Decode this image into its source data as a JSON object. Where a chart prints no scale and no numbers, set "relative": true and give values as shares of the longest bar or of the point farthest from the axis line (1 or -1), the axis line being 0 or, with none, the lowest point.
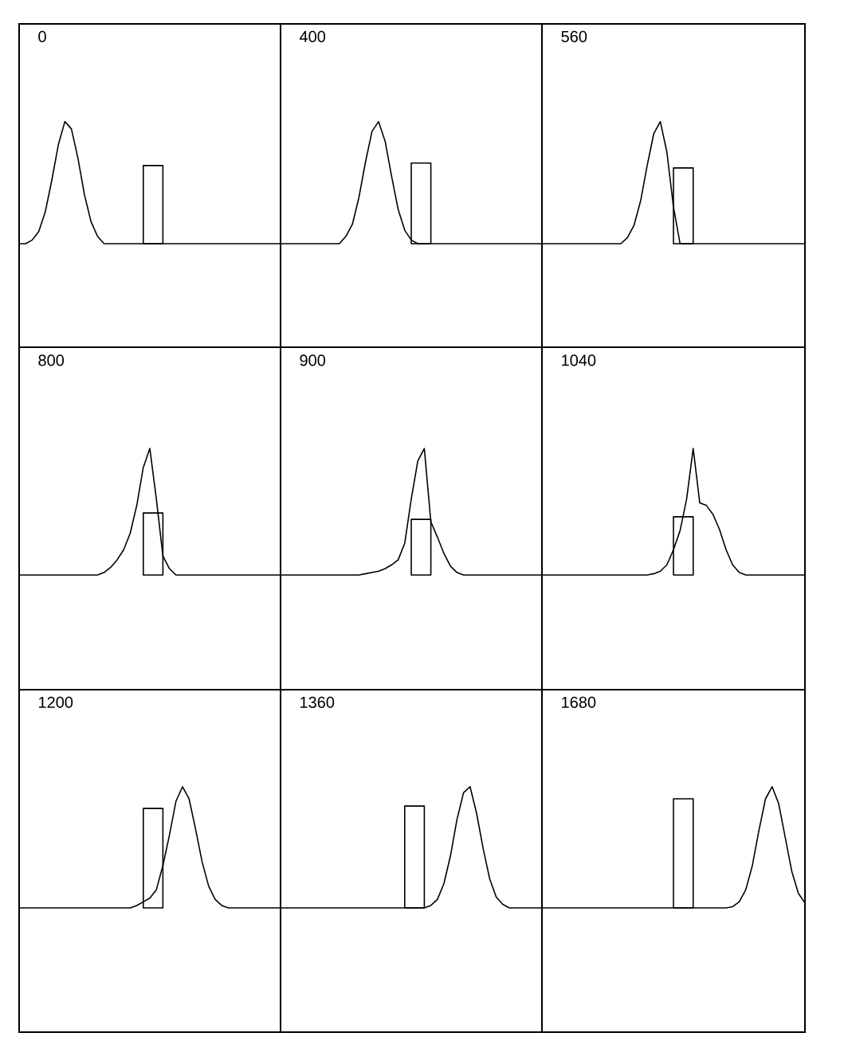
{
  "chart_data": [
    {
      "type": "line",
      "title": "0",
      "relative": true,
      "categories": [
        null,
        null,
        null,
        null,
        null,
        null,
        null,
        null,
        null,
        null,
        null,
        null,
        null,
        null,
        null,
        null,
        null,
        null,
        null,
        null,
        null,
        null,
        null,
        null,
        null,
        null,
        null,
        null,
        null,
        null,
        null,
        null,
        null,
        null,
        null,
        null,
        null,
        null,
        null,
        null,
        null
      ],
      "series": [
        {
          "type": "line",
          "color": "#000000",
          "values": [
            0,
            0,
            0.03,
            0.1,
            0.26,
            0.52,
            0.81,
            1,
            0.94,
            0.7,
            0.4,
            0.18,
            0.06,
            0,
            0,
            0,
            0,
            0,
            0,
            0,
            0,
            0,
            0,
            0,
            0,
            0,
            0,
            0,
            0,
            0,
            0,
            0,
            0,
            0,
            0,
            0,
            0,
            0,
            0,
            0,
            0
          ]
        },
        {
          "type": "area",
          "color": "#000000",
          "values": [
            null,
            null,
            null,
            null,
            null,
            null,
            null,
            null,
            null,
            null,
            null,
            null,
            null,
            null,
            null,
            null,
            null,
            null,
            null,
            0.64,
            0.64,
            0.64,
            0.64,
            null,
            null,
            null,
            null,
            null,
            null,
            null,
            null,
            null,
            null,
            null,
            null,
            null,
            null,
            null,
            null,
            null,
            null
          ]
        }
      ]
    },
    {
      "type": "line",
      "title": "400",
      "relative": true,
      "categories": [
        null,
        null,
        null,
        null,
        null,
        null,
        null,
        null,
        null,
        null,
        null,
        null,
        null,
        null,
        null,
        null,
        null,
        null,
        null,
        null,
        null,
        null,
        null,
        null,
        null,
        null,
        null,
        null,
        null,
        null,
        null,
        null,
        null,
        null,
        null,
        null,
        null,
        null,
        null,
        null,
        null
      ],
      "series": [
        {
          "type": "line",
          "color": "#000000",
          "values": [
            0,
            0,
            0,
            0,
            0,
            0,
            0,
            0,
            0,
            0,
            0.06,
            0.16,
            0.38,
            0.67,
            0.92,
            1,
            0.84,
            0.55,
            0.28,
            0.11,
            0.03,
            0,
            0,
            0,
            0,
            0,
            0,
            0,
            0,
            0,
            0,
            0,
            0,
            0,
            0,
            0,
            0,
            0,
            0,
            0,
            0
          ]
        },
        {
          "type": "area",
          "color": "#000000",
          "values": [
            null,
            null,
            null,
            null,
            null,
            null,
            null,
            null,
            null,
            null,
            null,
            null,
            null,
            null,
            null,
            null,
            null,
            null,
            null,
            null,
            0.66,
            0.66,
            0.66,
            0.66,
            null,
            null,
            null,
            null,
            null,
            null,
            null,
            null,
            null,
            null,
            null,
            null,
            null,
            null,
            null,
            null,
            null
          ]
        }
      ]
    },
    {
      "type": "line",
      "title": "560",
      "relative": true,
      "categories": [
        null,
        null,
        null,
        null,
        null,
        null,
        null,
        null,
        null,
        null,
        null,
        null,
        null,
        null,
        null,
        null,
        null,
        null,
        null,
        null,
        null,
        null,
        null,
        null,
        null,
        null,
        null,
        null,
        null,
        null,
        null,
        null,
        null,
        null,
        null,
        null,
        null,
        null,
        null,
        null,
        null
      ],
      "series": [
        {
          "type": "line",
          "color": "#000000",
          "values": [
            0,
            0,
            0,
            0,
            0,
            0,
            0,
            0,
            0,
            0,
            0,
            0,
            0,
            0.05,
            0.15,
            0.35,
            0.64,
            0.9,
            1,
            0.75,
            0.3,
            0,
            0,
            0,
            0,
            0,
            0,
            0,
            0,
            0,
            0,
            0,
            0,
            0,
            0,
            0,
            0,
            0,
            0,
            0,
            0
          ]
        },
        {
          "type": "area",
          "color": "#000000",
          "values": [
            null,
            null,
            null,
            null,
            null,
            null,
            null,
            null,
            null,
            null,
            null,
            null,
            null,
            null,
            null,
            null,
            null,
            null,
            null,
            null,
            0.62,
            0.62,
            0.62,
            0.62,
            null,
            null,
            null,
            null,
            null,
            null,
            null,
            null,
            null,
            null,
            null,
            null,
            null,
            null,
            null,
            null,
            null
          ]
        }
      ]
    },
    {
      "type": "line",
      "title": "800",
      "relative": true,
      "categories": [
        null,
        null,
        null,
        null,
        null,
        null,
        null,
        null,
        null,
        null,
        null,
        null,
        null,
        null,
        null,
        null,
        null,
        null,
        null,
        null,
        null,
        null,
        null,
        null,
        null,
        null,
        null,
        null,
        null,
        null,
        null,
        null,
        null,
        null,
        null,
        null,
        null,
        null,
        null,
        null,
        null
      ],
      "series": [
        {
          "type": "line",
          "color": "#000000",
          "values": [
            0,
            0,
            0,
            0,
            0,
            0,
            0,
            0,
            0,
            0,
            0,
            0,
            0,
            0.02,
            0.06,
            0.12,
            0.2,
            0.33,
            0.55,
            0.85,
            1,
            0.6,
            0.15,
            0.05,
            0,
            0,
            0,
            0,
            0,
            0,
            0,
            0,
            0,
            0,
            0,
            0,
            0,
            0,
            0,
            0,
            0
          ]
        },
        {
          "type": "area",
          "color": "#000000",
          "values": [
            null,
            null,
            null,
            null,
            null,
            null,
            null,
            null,
            null,
            null,
            null,
            null,
            null,
            null,
            null,
            null,
            null,
            null,
            null,
            0.49,
            0.49,
            0.49,
            0.49,
            null,
            null,
            null,
            null,
            null,
            null,
            null,
            null,
            null,
            null,
            null,
            null,
            null,
            null,
            null,
            null,
            null,
            null
          ]
        }
      ]
    },
    {
      "type": "line",
      "title": "900",
      "relative": true,
      "categories": [
        null,
        null,
        null,
        null,
        null,
        null,
        null,
        null,
        null,
        null,
        null,
        null,
        null,
        null,
        null,
        null,
        null,
        null,
        null,
        null,
        null,
        null,
        null,
        null,
        null,
        null,
        null,
        null,
        null,
        null,
        null,
        null,
        null,
        null,
        null,
        null,
        null,
        null,
        null,
        null,
        null
      ],
      "series": [
        {
          "type": "line",
          "color": "#000000",
          "values": [
            0,
            0,
            0,
            0,
            0,
            0,
            0,
            0,
            0,
            0,
            0,
            0,
            0,
            0.01,
            0.02,
            0.03,
            0.05,
            0.08,
            0.12,
            0.25,
            0.6,
            0.9,
            1,
            0.42,
            0.3,
            0.17,
            0.07,
            0.02,
            0,
            0,
            0,
            0,
            0,
            0,
            0,
            0,
            0,
            0,
            0,
            0,
            0
          ]
        },
        {
          "type": "area",
          "color": "#000000",
          "values": [
            null,
            null,
            null,
            null,
            null,
            null,
            null,
            null,
            null,
            null,
            null,
            null,
            null,
            null,
            null,
            null,
            null,
            null,
            null,
            null,
            0.44,
            0.44,
            0.44,
            0.44,
            null,
            null,
            null,
            null,
            null,
            null,
            null,
            null,
            null,
            null,
            null,
            null,
            null,
            null,
            null,
            null,
            null
          ]
        }
      ]
    },
    {
      "type": "line",
      "title": "1040",
      "relative": true,
      "categories": [
        null,
        null,
        null,
        null,
        null,
        null,
        null,
        null,
        null,
        null,
        null,
        null,
        null,
        null,
        null,
        null,
        null,
        null,
        null,
        null,
        null,
        null,
        null,
        null,
        null,
        null,
        null,
        null,
        null,
        null,
        null,
        null,
        null,
        null,
        null,
        null,
        null,
        null,
        null,
        null,
        null
      ],
      "series": [
        {
          "type": "line",
          "color": "#000000",
          "values": [
            0,
            0,
            0,
            0,
            0,
            0,
            0,
            0,
            0,
            0,
            0,
            0,
            0,
            0,
            0,
            0,
            0,
            0.01,
            0.03,
            0.08,
            0.2,
            0.35,
            0.6,
            1,
            0.57,
            0.55,
            0.48,
            0.36,
            0.2,
            0.08,
            0.02,
            0,
            0,
            0,
            0,
            0,
            0,
            0,
            0,
            0,
            0
          ]
        },
        {
          "type": "area",
          "color": "#000000",
          "values": [
            null,
            null,
            null,
            null,
            null,
            null,
            null,
            null,
            null,
            null,
            null,
            null,
            null,
            null,
            null,
            null,
            null,
            null,
            null,
            null,
            0.46,
            0.46,
            0.46,
            0.46,
            null,
            null,
            null,
            null,
            null,
            null,
            null,
            null,
            null,
            null,
            null,
            null,
            null,
            null,
            null,
            null,
            null
          ]
        }
      ]
    },
    {
      "type": "line",
      "title": "1200",
      "relative": true,
      "categories": [
        null,
        null,
        null,
        null,
        null,
        null,
        null,
        null,
        null,
        null,
        null,
        null,
        null,
        null,
        null,
        null,
        null,
        null,
        null,
        null,
        null,
        null,
        null,
        null,
        null,
        null,
        null,
        null,
        null,
        null,
        null,
        null,
        null,
        null,
        null,
        null,
        null,
        null,
        null,
        null,
        null
      ],
      "series": [
        {
          "type": "line",
          "color": "#000000",
          "values": [
            0,
            0,
            0,
            0,
            0,
            0,
            0,
            0,
            0,
            0,
            0,
            0,
            0,
            0,
            0,
            0,
            0,
            0,
            0.02,
            0.05,
            0.08,
            0.15,
            0.35,
            0.6,
            0.88,
            1,
            0.9,
            0.65,
            0.38,
            0.18,
            0.07,
            0.02,
            0,
            0,
            0,
            0,
            0,
            0,
            0,
            0,
            0
          ]
        },
        {
          "type": "area",
          "color": "#000000",
          "values": [
            null,
            null,
            null,
            null,
            null,
            null,
            null,
            null,
            null,
            null,
            null,
            null,
            null,
            null,
            null,
            null,
            null,
            null,
            null,
            0.82,
            0.82,
            0.82,
            0.82,
            null,
            null,
            null,
            null,
            null,
            null,
            null,
            null,
            null,
            null,
            null,
            null,
            null,
            null,
            null,
            null,
            null,
            null
          ]
        }
      ]
    },
    {
      "type": "line",
      "title": "1360",
      "relative": true,
      "categories": [
        null,
        null,
        null,
        null,
        null,
        null,
        null,
        null,
        null,
        null,
        null,
        null,
        null,
        null,
        null,
        null,
        null,
        null,
        null,
        null,
        null,
        null,
        null,
        null,
        null,
        null,
        null,
        null,
        null,
        null,
        null,
        null,
        null,
        null,
        null,
        null,
        null,
        null,
        null,
        null,
        null
      ],
      "series": [
        {
          "type": "line",
          "color": "#000000",
          "values": [
            0,
            0,
            0,
            0,
            0,
            0,
            0,
            0,
            0,
            0,
            0,
            0,
            0,
            0,
            0,
            0,
            0,
            0,
            0,
            0,
            0,
            0,
            0,
            0.02,
            0.07,
            0.2,
            0.43,
            0.73,
            0.95,
            1,
            0.78,
            0.49,
            0.24,
            0.09,
            0.03,
            0,
            0,
            0,
            0,
            0,
            0
          ]
        },
        {
          "type": "area",
          "color": "#000000",
          "values": [
            null,
            null,
            null,
            null,
            null,
            null,
            null,
            null,
            null,
            null,
            null,
            null,
            null,
            null,
            null,
            null,
            null,
            null,
            null,
            0.84,
            0.84,
            0.84,
            0.84,
            null,
            null,
            null,
            null,
            null,
            null,
            null,
            null,
            null,
            null,
            null,
            null,
            null,
            null,
            null,
            null,
            null,
            null
          ]
        }
      ]
    },
    {
      "type": "line",
      "title": "1680",
      "relative": true,
      "categories": [
        null,
        null,
        null,
        null,
        null,
        null,
        null,
        null,
        null,
        null,
        null,
        null,
        null,
        null,
        null,
        null,
        null,
        null,
        null,
        null,
        null,
        null,
        null,
        null,
        null,
        null,
        null,
        null,
        null,
        null,
        null,
        null,
        null,
        null,
        null,
        null,
        null,
        null,
        null,
        null,
        null
      ],
      "series": [
        {
          "type": "line",
          "color": "#000000",
          "values": [
            0,
            0,
            0,
            0,
            0,
            0,
            0,
            0,
            0,
            0,
            0,
            0,
            0,
            0,
            0,
            0,
            0,
            0,
            0,
            0,
            0,
            0,
            0,
            0,
            0,
            0,
            0,
            0,
            0,
            0.01,
            0.05,
            0.15,
            0.35,
            0.64,
            0.9,
            1,
            0.86,
            0.58,
            0.3,
            0.12,
            0.04
          ]
        },
        {
          "type": "area",
          "color": "#000000",
          "values": [
            null,
            null,
            null,
            null,
            null,
            null,
            null,
            null,
            null,
            null,
            null,
            null,
            null,
            null,
            null,
            null,
            null,
            null,
            null,
            null,
            0.9,
            0.9,
            0.9,
            0.9,
            null,
            null,
            null,
            null,
            null,
            null,
            null,
            null,
            null,
            null,
            null,
            null,
            null,
            null,
            null,
            null,
            null
          ]
        }
      ]
    }
  ]
}
